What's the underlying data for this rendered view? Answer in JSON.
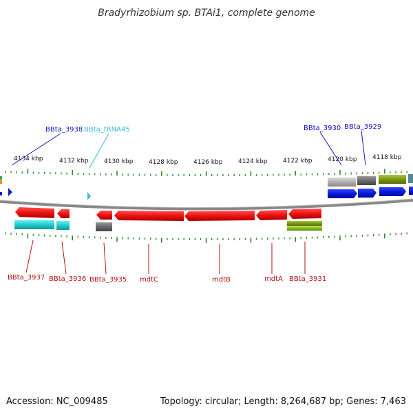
{
  "title": "Bradyrhizobium sp. BTAi1, complete genome",
  "footer": {
    "accession": "Accession: NC_009485",
    "topology": "Topology: circular; Length: 8,264,687 bp; Genes: 7,463"
  },
  "scale_labels": [
    "4134 kbp",
    "4132 kbp",
    "4130 kbp",
    "4128 kbp",
    "4126 kbp",
    "4124 kbp",
    "4122 kbp",
    "4120 kbp",
    "4118 kbp"
  ],
  "top_genes": [
    {
      "label": "BBta_3938",
      "color": "#1010c0"
    },
    {
      "label": "BBta_tRNA45",
      "color": "#33bbdd"
    },
    {
      "label": "BBta_3930",
      "color": "#1010c0"
    },
    {
      "label": "BBta_3929",
      "color": "#1010c0"
    }
  ],
  "bottom_genes": [
    {
      "label": "BBta_3937",
      "color": "#b01010"
    },
    {
      "label": "BBta_3936",
      "color": "#b01010"
    },
    {
      "label": "BBta_3935",
      "color": "#b01010"
    },
    {
      "label": "mdtC",
      "color": "#b01010"
    },
    {
      "label": "mdtB",
      "color": "#b01010"
    },
    {
      "label": "mdtA",
      "color": "#b01010"
    },
    {
      "label": "BBta_3931",
      "color": "#b01010"
    }
  ],
  "colors": {
    "backbone": "#8a8a8a",
    "tick": "#2e8b2e",
    "reverse_strand": "#ee1111",
    "forward_strand": "#0a1ad8",
    "cog_cyan": "#22cccc",
    "cog_grey": "#707070",
    "cog_light_grey": "#b0b0b0",
    "cog_olive": "#7a9a10",
    "cog_green": "#86bb22"
  }
}
